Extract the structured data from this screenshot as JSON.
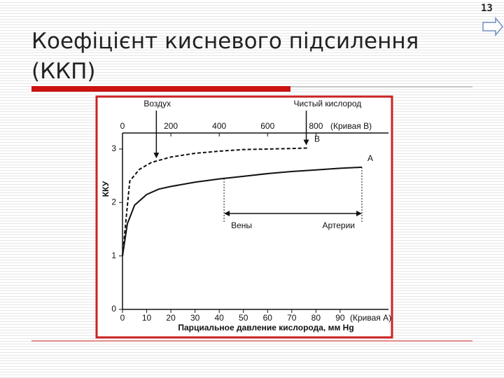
{
  "slide": {
    "title": "Коефіцієнт кисневого підсилення (ККП)",
    "page_number": "13"
  },
  "chart_data": {
    "type": "line",
    "xlabel": "Парциальное давление кислорода, мм Hg",
    "ylabel": "ККУ",
    "x_axis_note": "(Кривая А)",
    "x2_axis_note": "(Кривая В)",
    "xlim": [
      0,
      110
    ],
    "xticks": [
      0,
      10,
      20,
      30,
      40,
      50,
      60,
      70,
      80,
      90
    ],
    "x2lim": [
      0,
      1100
    ],
    "x2ticks": [
      0,
      200,
      400,
      600,
      800
    ],
    "ylim": [
      0,
      3.3
    ],
    "yticks": [
      0,
      1,
      2,
      3
    ],
    "series": [
      {
        "name": "A",
        "color": "#111111",
        "dash": false,
        "x": [
          0,
          2,
          5,
          10,
          15,
          20,
          30,
          40,
          50,
          60,
          70,
          80,
          90,
          99
        ],
        "values": [
          1.0,
          1.6,
          1.95,
          2.15,
          2.25,
          2.3,
          2.38,
          2.44,
          2.49,
          2.54,
          2.58,
          2.61,
          2.64,
          2.66
        ]
      },
      {
        "name": "B",
        "color": "#111111",
        "dash": true,
        "axis": "x2",
        "x": [
          0,
          30,
          70,
          120,
          200,
          300,
          400,
          500,
          600,
          700,
          770
        ],
        "values": [
          1.0,
          2.4,
          2.62,
          2.75,
          2.85,
          2.92,
          2.96,
          2.99,
          3.0,
          3.01,
          3.02
        ]
      }
    ],
    "annotations": [
      {
        "text": "Воздух",
        "x": 140
      },
      {
        "text": "Чистый кислород",
        "x": 760
      }
    ],
    "span": {
      "from": 42,
      "to": 99,
      "labels": [
        "Вены",
        "Артерии"
      ]
    }
  }
}
